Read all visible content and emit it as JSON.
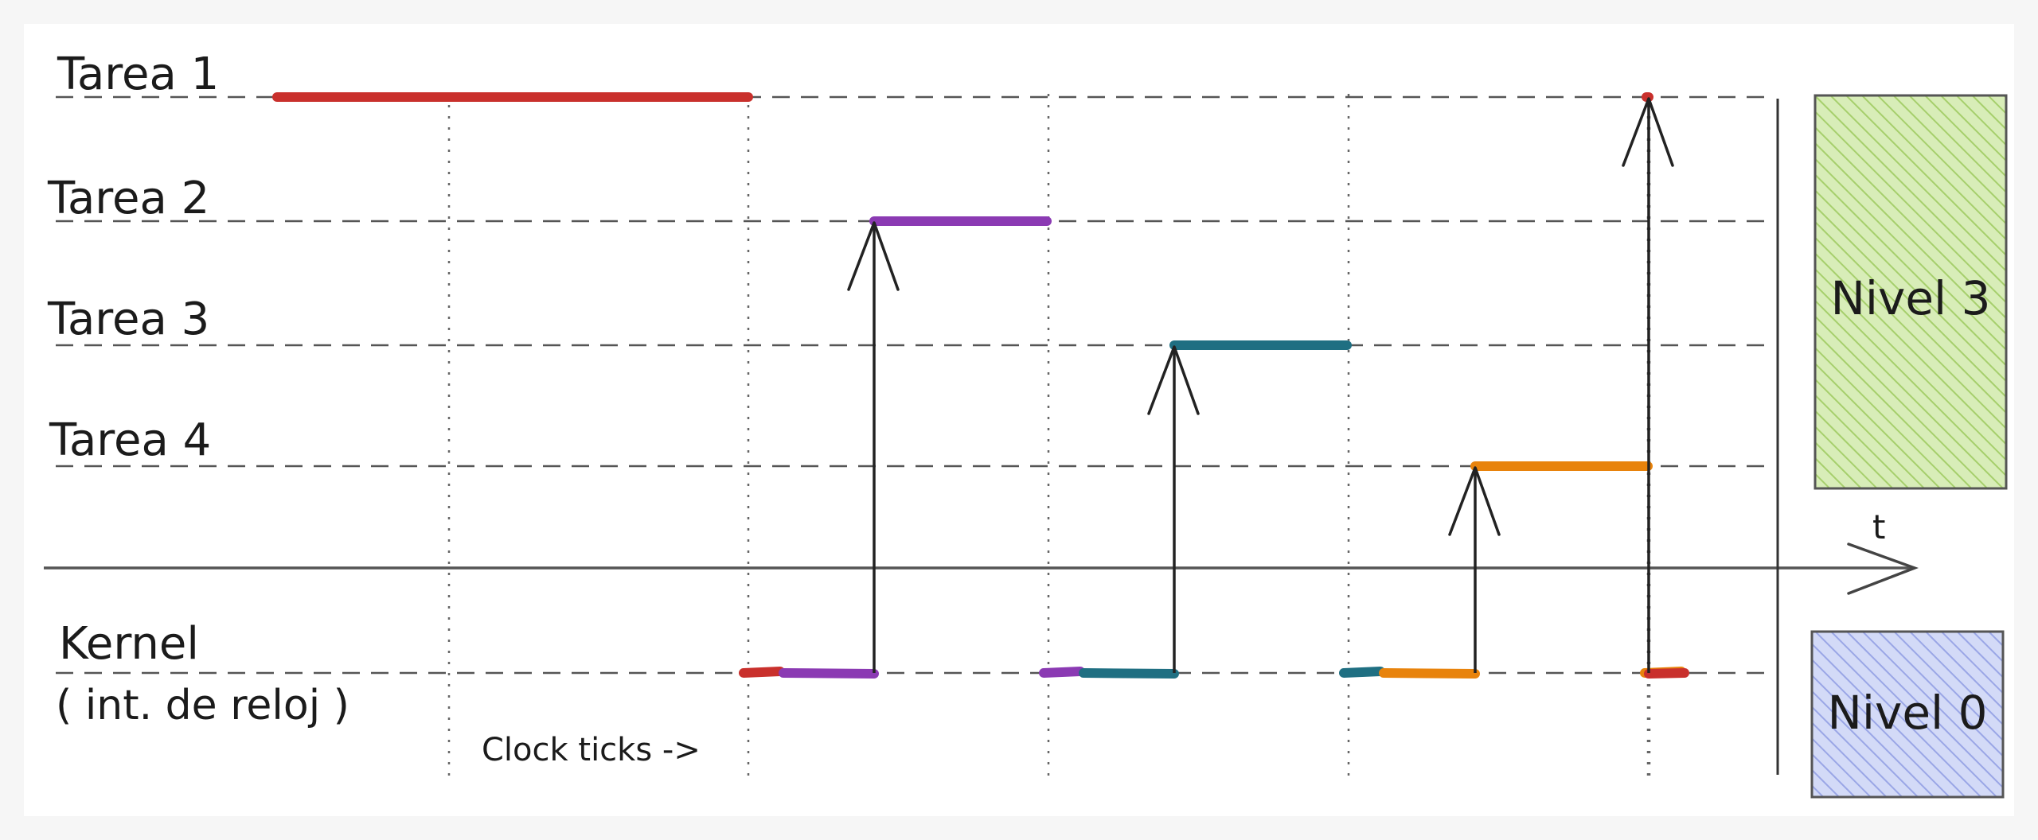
{
  "rows": [
    {
      "label": "Tarea 1",
      "color": "#c9302c"
    },
    {
      "label": "Tarea 2",
      "color": "#8b3ab3"
    },
    {
      "label": "Tarea 3",
      "color": "#1f6f82"
    },
    {
      "label": "Tarea 4",
      "color": "#e8830c"
    }
  ],
  "kernel": {
    "label": "Kernel",
    "sublabel": "( int. de reloj )"
  },
  "ticks_label": "Clock ticks ->",
  "time_axis_label": "t",
  "levels": [
    {
      "label": "Nivel 3",
      "fill": "#cfe8a8",
      "stroke": "#6f9a3c"
    },
    {
      "label": "Nivel 0",
      "fill": "#c8d0f5",
      "stroke": "#5a66b0"
    }
  ],
  "schedule": [
    {
      "task": 1,
      "tick_start": 0,
      "tick_end": 1
    },
    {
      "task": 2,
      "tick_start": 1,
      "tick_end": 2
    },
    {
      "task": 3,
      "tick_start": 2,
      "tick_end": 3
    },
    {
      "task": 4,
      "tick_start": 3,
      "tick_end": 4
    },
    {
      "task": 1,
      "tick_start": 4,
      "tick_end": 5
    }
  ]
}
